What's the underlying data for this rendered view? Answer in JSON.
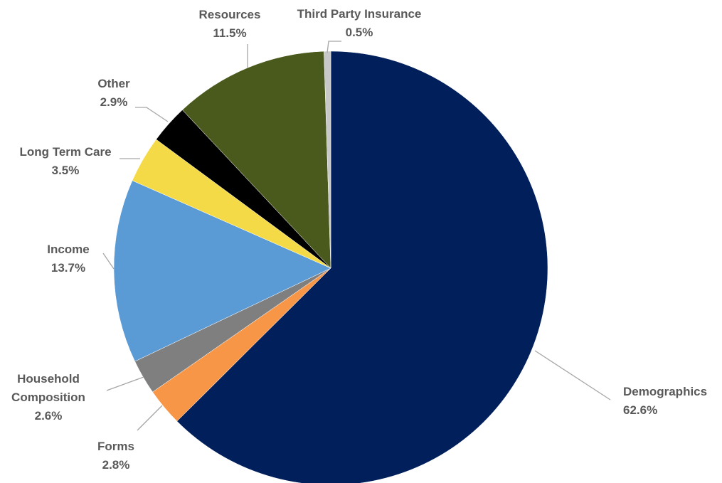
{
  "chart_data": {
    "type": "pie",
    "title": "",
    "start_angle_deg": 0,
    "direction": "clockwise",
    "legend": "none",
    "slices": [
      {
        "label_lines": [
          "Demographics"
        ],
        "value_label": "62.6%",
        "value": 62.6,
        "color": "#001f5b"
      },
      {
        "label_lines": [
          "Forms"
        ],
        "value_label": "2.8%",
        "value": 2.8,
        "color": "#f79646"
      },
      {
        "label_lines": [
          "Household",
          "Composition"
        ],
        "value_label": "2.6%",
        "value": 2.6,
        "color": "#7f7f7f"
      },
      {
        "label_lines": [
          "Income"
        ],
        "value_label": "13.7%",
        "value": 13.7,
        "color": "#5b9bd5"
      },
      {
        "label_lines": [
          "Long Term Care"
        ],
        "value_label": "3.5%",
        "value": 3.5,
        "color": "#f4da47"
      },
      {
        "label_lines": [
          "Other"
        ],
        "value_label": "2.9%",
        "value": 2.9,
        "color": "#000000"
      },
      {
        "label_lines": [
          "Resources"
        ],
        "value_label": "11.5%",
        "value": 11.5,
        "color": "#4a5a1d"
      },
      {
        "label_lines": [
          "Third Party Insurance"
        ],
        "value_label": "0.5%",
        "value": 0.5,
        "color": "#c8c8c8"
      }
    ]
  }
}
